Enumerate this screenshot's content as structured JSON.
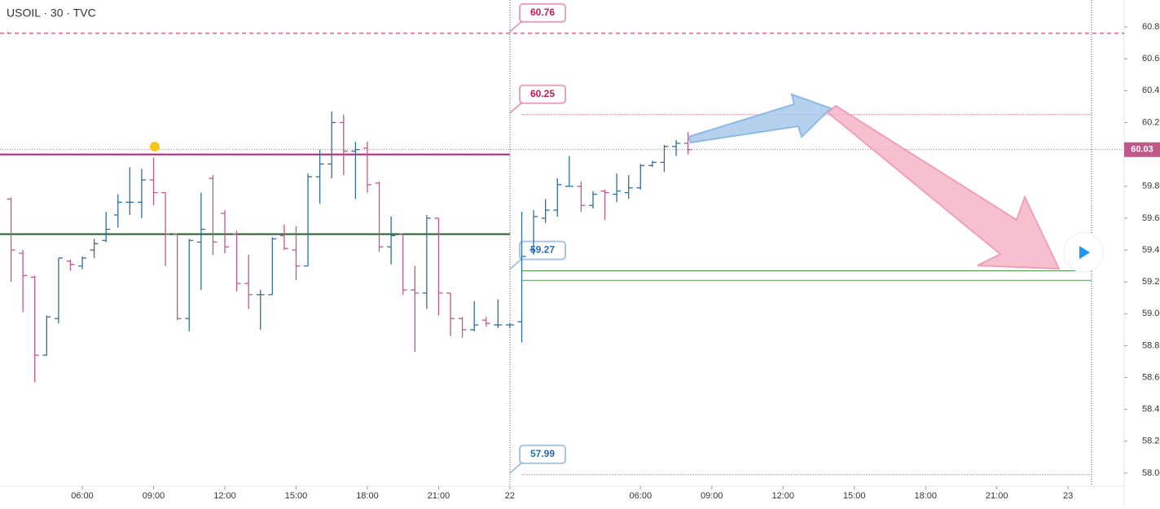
{
  "chart_data": {
    "type": "ohlc",
    "title": "USOIL · 30 · TVC",
    "up_color": "#2f6f9c",
    "down_color": "#c2578a",
    "x": [
      -6,
      -5,
      -4,
      -3,
      -2,
      -1,
      0,
      1,
      2,
      3,
      4,
      5,
      6,
      7,
      8,
      9,
      10,
      11,
      12,
      13,
      14,
      15,
      16,
      17,
      18,
      19,
      20,
      21,
      22,
      23,
      24,
      25,
      26,
      27,
      28,
      29,
      30,
      31,
      32,
      33,
      34,
      35,
      36,
      37,
      38,
      39,
      40,
      41,
      42,
      43,
      44,
      45,
      46,
      47,
      48,
      49,
      50,
      51
    ],
    "open": [
      59.72,
      59.38,
      59.23,
      58.74,
      58.97,
      59.33,
      59.3,
      59.4,
      59.46,
      59.62,
      59.7,
      59.7,
      59.84,
      59.76,
      59.5,
      58.97,
      59.45,
      59.85,
      59.63,
      59.5,
      59.19,
      59.12,
      59.12,
      59.49,
      59.4,
      59.3,
      59.86,
      59.94,
      60.2,
      60.02,
      60.04,
      59.82,
      59.42,
      59.5,
      59.15,
      59.13,
      59.6,
      59.13,
      58.97,
      58.9,
      58.96,
      58.93,
      58.93,
      58.95,
      59.4,
      59.6,
      59.65,
      59.8,
      59.8,
      59.68,
      59.77,
      59.75,
      59.76,
      59.79,
      59.93,
      59.95,
      60.05,
      60.07
    ],
    "high": [
      59.73,
      59.4,
      59.24,
      58.99,
      59.35,
      59.34,
      59.36,
      59.47,
      59.64,
      59.75,
      59.92,
      59.91,
      59.98,
      59.76,
      59.5,
      59.47,
      59.76,
      59.87,
      59.65,
      59.52,
      59.37,
      59.15,
      59.48,
      59.56,
      59.55,
      59.88,
      60.03,
      60.27,
      60.25,
      60.08,
      60.08,
      59.83,
      59.61,
      59.5,
      59.3,
      59.62,
      59.6,
      59.13,
      58.98,
      59.08,
      58.98,
      59.09,
      58.94,
      59.64,
      59.65,
      59.72,
      59.85,
      59.99,
      59.83,
      59.77,
      59.78,
      59.88,
      59.87,
      59.94,
      59.96,
      60.06,
      60.09,
      60.14
    ],
    "low": [
      59.2,
      59.01,
      58.57,
      58.74,
      58.94,
      59.27,
      59.28,
      59.35,
      59.45,
      59.54,
      59.62,
      59.6,
      59.68,
      59.3,
      58.96,
      58.89,
      59.15,
      59.37,
      59.38,
      59.14,
      59.03,
      58.9,
      59.12,
      59.4,
      59.21,
      59.3,
      59.69,
      59.85,
      59.87,
      59.72,
      59.76,
      59.39,
      59.31,
      59.12,
      58.76,
      59.03,
      58.99,
      58.86,
      58.85,
      58.89,
      58.92,
      58.91,
      58.91,
      58.82,
      59.37,
      59.57,
      59.61,
      59.8,
      59.64,
      59.66,
      59.59,
      59.7,
      59.72,
      59.78,
      59.92,
      59.89,
      59.99,
      60.0
    ],
    "close": [
      59.4,
      59.24,
      58.74,
      58.98,
      59.35,
      59.31,
      59.35,
      59.44,
      59.53,
      59.7,
      59.7,
      59.84,
      59.76,
      59.5,
      58.97,
      59.46,
      59.53,
      59.45,
      59.42,
      59.19,
      59.12,
      59.12,
      59.47,
      59.41,
      59.3,
      59.86,
      59.94,
      60.2,
      60.02,
      60.03,
      59.81,
      59.42,
      59.49,
      59.15,
      59.13,
      59.6,
      59.13,
      58.97,
      58.9,
      58.93,
      58.94,
      58.93,
      58.93,
      59.36,
      59.61,
      59.65,
      59.81,
      59.8,
      59.68,
      59.75,
      59.76,
      59.77,
      59.79,
      59.93,
      59.95,
      60.05,
      60.07,
      60.03
    ],
    "xlim": [
      -6.93,
      87.72
    ],
    "xticks": [
      {
        "value": 0,
        "label": "06:00"
      },
      {
        "value": 6,
        "label": "09:00"
      },
      {
        "value": 12,
        "label": "12:00"
      },
      {
        "value": 18,
        "label": "15:00"
      },
      {
        "value": 24,
        "label": "18:00"
      },
      {
        "value": 30,
        "label": "21:00"
      },
      {
        "value": 36,
        "label": "22"
      },
      {
        "value": 47,
        "label": "06:00"
      },
      {
        "value": 53,
        "label": "09:00"
      },
      {
        "value": 59,
        "label": "12:00"
      },
      {
        "value": 65,
        "label": "15:00"
      },
      {
        "value": 71,
        "label": "18:00"
      },
      {
        "value": 77,
        "label": "21:00"
      },
      {
        "value": 83,
        "label": "23"
      }
    ],
    "ylim": [
      57.918,
      60.969
    ],
    "yticks": [
      {
        "value": 58.0,
        "label": "58.00"
      },
      {
        "value": 58.2,
        "label": "58.20"
      },
      {
        "value": 58.4,
        "label": "58.40"
      },
      {
        "value": 58.6,
        "label": "58.60"
      },
      {
        "value": 58.8,
        "label": "58.80"
      },
      {
        "value": 59.0,
        "label": "59.00"
      },
      {
        "value": 59.2,
        "label": "59.20"
      },
      {
        "value": 59.4,
        "label": "59.40"
      },
      {
        "value": 59.6,
        "label": "59.60"
      },
      {
        "value": 59.8,
        "label": "59.80"
      },
      {
        "value": 60.0,
        "label": "60.00"
      },
      {
        "value": 60.2,
        "label": "60.20"
      },
      {
        "value": 60.4,
        "label": "60.40"
      },
      {
        "value": 60.6,
        "label": "60.60"
      },
      {
        "value": 60.8,
        "label": "60.80"
      }
    ],
    "last_price": 60.03,
    "levels": [
      {
        "value": 60.76,
        "color": "#c2185b",
        "style": "dashed",
        "callout": true
      },
      {
        "value": 60.25,
        "color": "#c2185b",
        "style": "dotted",
        "x_start": 37,
        "callout": true
      },
      {
        "value": 60.0,
        "color": "#c2187a",
        "style": "solid",
        "x_end": 36
      },
      {
        "value": 59.5,
        "color": "#1b5e20",
        "style": "solid",
        "x_end": 36
      },
      {
        "value": 59.27,
        "color": "#4e9a51",
        "style": "solid",
        "x_start": 37,
        "callout": true,
        "callout_color": "#2a6cb0"
      },
      {
        "value": 59.21,
        "color": "#4e9a51",
        "style": "solid",
        "x_start": 37
      },
      {
        "value": 57.99,
        "color": "#555555",
        "style": "dotted",
        "x_start": 37,
        "callout": true,
        "callout_color": "#2a6cb0"
      }
    ]
  }
}
